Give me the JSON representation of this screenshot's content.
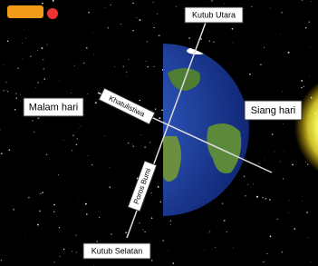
{
  "labels": {
    "north_pole": "Kutub Utara",
    "night": "Malam hari",
    "day": "Siang hari",
    "equator": "Khatulistiwa",
    "axis": "Poros Bumi",
    "south_pole": "Kutub Selatan"
  }
}
